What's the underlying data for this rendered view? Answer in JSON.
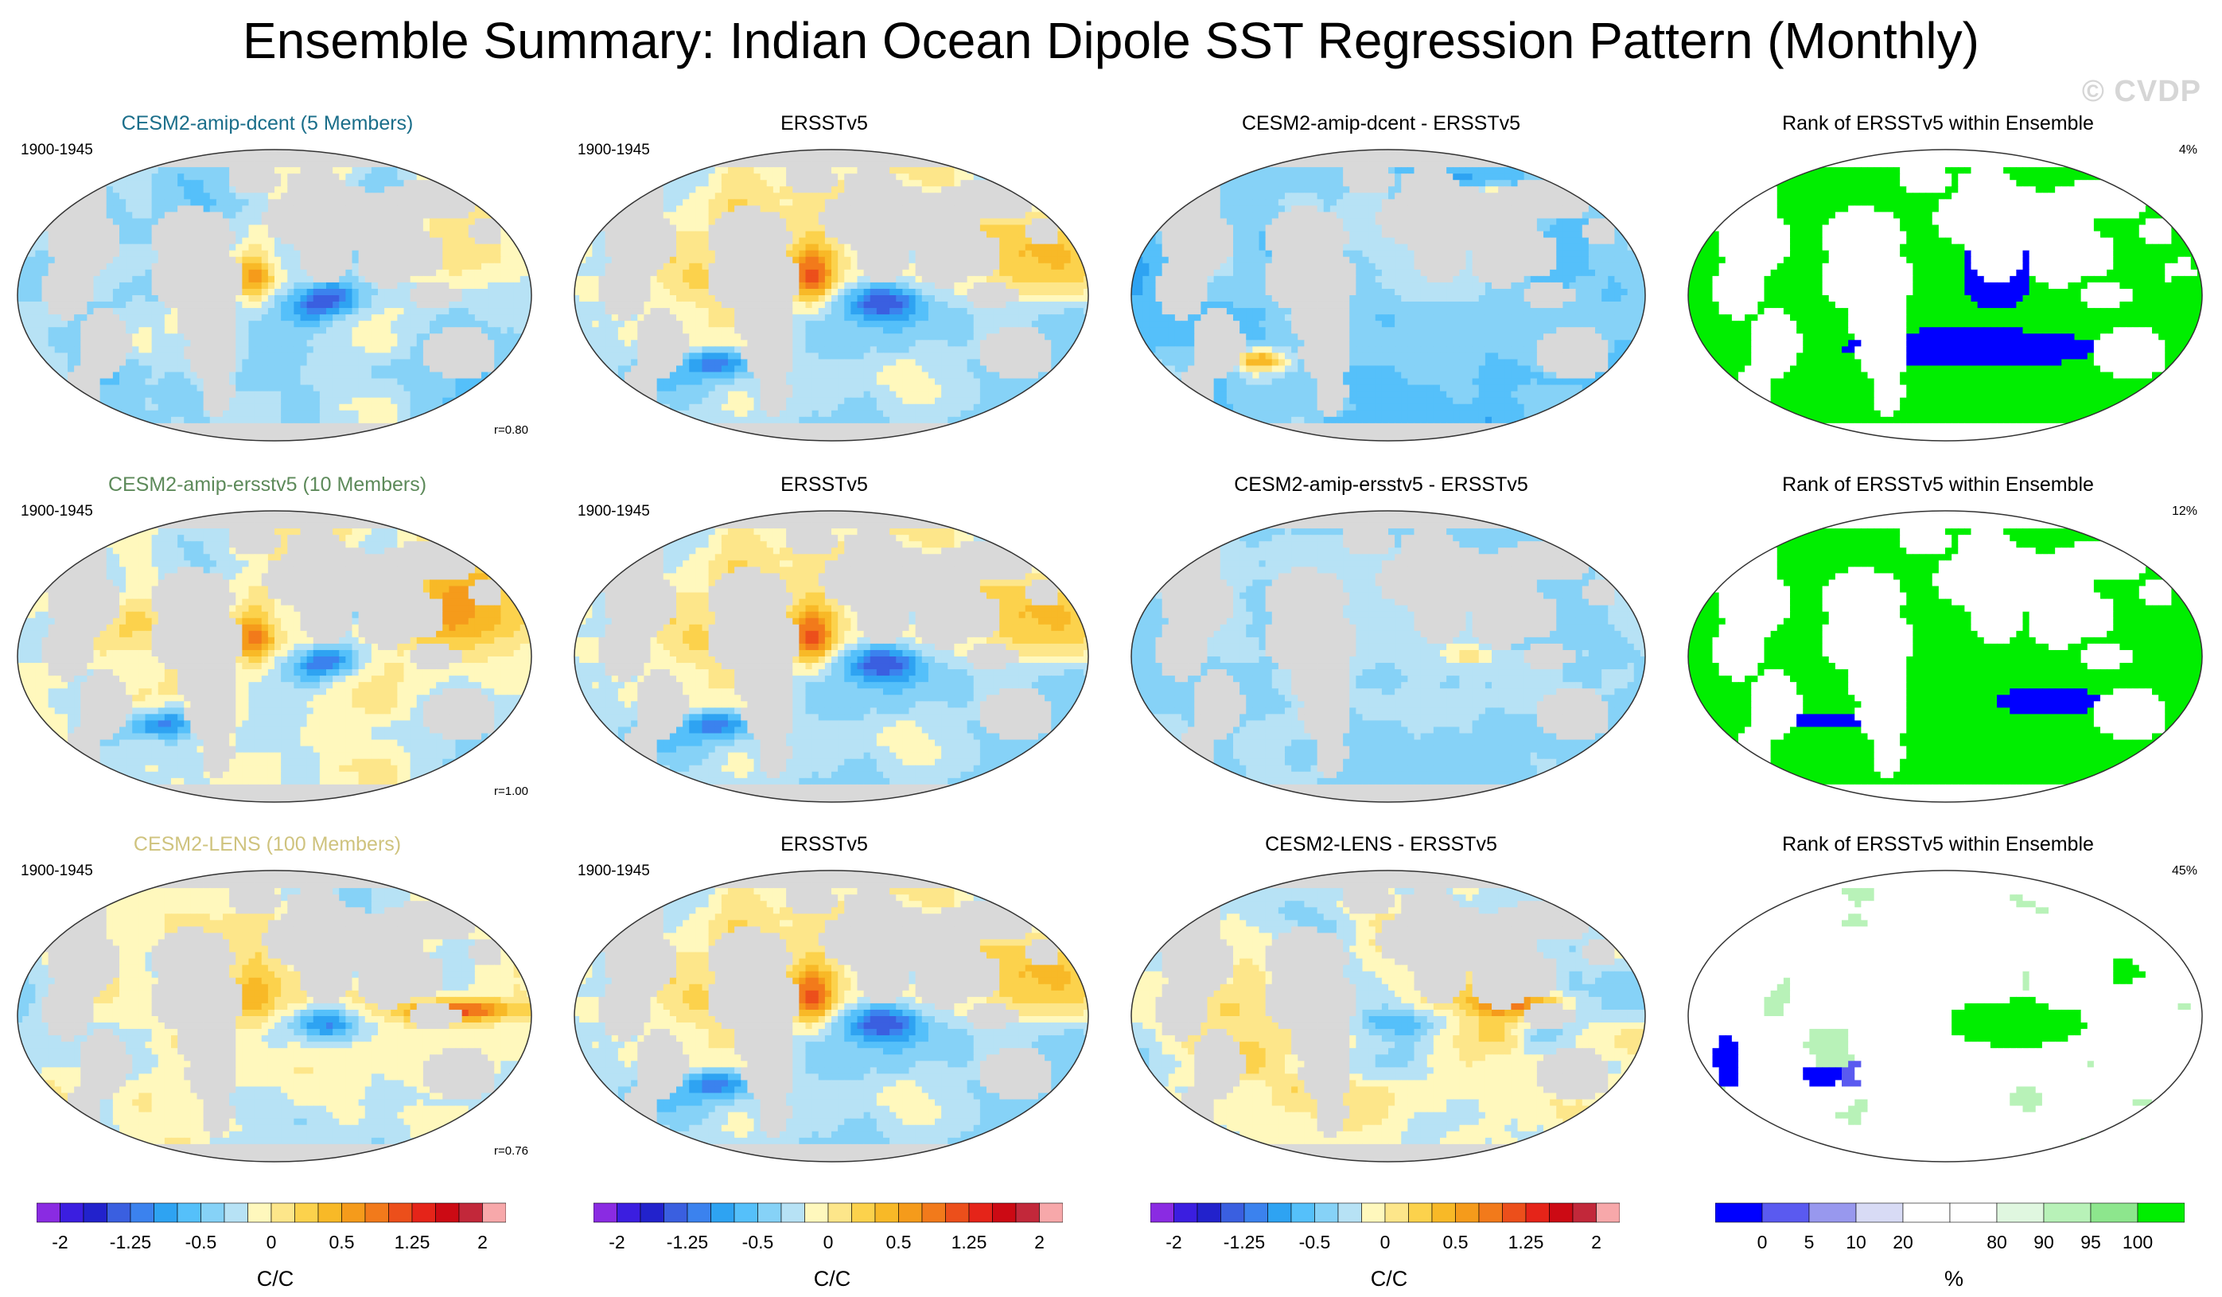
{
  "title": "Ensemble Summary: Indian Ocean Dipole SST Regression Pattern (Monthly)",
  "watermark": "© CVDP",
  "rows": [
    {
      "model": {
        "title": "CESM2-amip-dcent (5 Members)",
        "title_color": "#1a6e8a",
        "period": "1900-1945",
        "correlation": "r=0.80"
      },
      "obs": {
        "title": "ERSSTv5",
        "period": "1900-1945"
      },
      "diff": {
        "title": "CESM2-amip-dcent - ERSSTv5"
      },
      "rank": {
        "title": "Rank of ERSSTv5 within Ensemble",
        "percent": "4%"
      }
    },
    {
      "model": {
        "title": "CESM2-amip-ersstv5 (10 Members)",
        "title_color": "#5d8a5a",
        "period": "1900-1945",
        "correlation": "r=1.00"
      },
      "obs": {
        "title": "ERSSTv5",
        "period": "1900-1945"
      },
      "diff": {
        "title": "CESM2-amip-ersstv5 - ERSSTv5"
      },
      "rank": {
        "title": "Rank of ERSSTv5 within Ensemble",
        "percent": "12%"
      }
    },
    {
      "model": {
        "title": "CESM2-LENS (100 Members)",
        "title_color": "#cfc37e",
        "period": "1900-1945",
        "correlation": "r=0.76"
      },
      "obs": {
        "title": "ERSSTv5",
        "period": "1900-1945"
      },
      "diff": {
        "title": "CESM2-LENS - ERSSTv5"
      },
      "rank": {
        "title": "Rank of ERSSTv5 within Ensemble",
        "percent": "45%"
      }
    }
  ],
  "colorbars": {
    "sst": {
      "label": "C/C",
      "tick_labels": [
        "-2",
        "-1.25",
        "-0.5",
        "0",
        "0.5",
        "1.25",
        "2"
      ],
      "tick_values": [
        -2,
        -1.25,
        -0.5,
        0,
        0.5,
        1.25,
        2
      ],
      "colors": [
        "#8a2be2",
        "#3b1ee0",
        "#2222cc",
        "#3a5fe0",
        "#3b82ee",
        "#2ea3f2",
        "#55c0fa",
        "#86d2f7",
        "#b7e2f5",
        "#fff8bd",
        "#fde68a",
        "#fcd24c",
        "#f8b927",
        "#f59b1b",
        "#f27a1b",
        "#ec4f1b",
        "#e52419",
        "#cc0a14",
        "#c2283a",
        "#f7a8aa"
      ]
    },
    "rank": {
      "label": "%",
      "tick_labels": [
        "0",
        "5",
        "10",
        "20",
        "80",
        "90",
        "95",
        "100"
      ],
      "colors": [
        "#0000ff",
        "#5a5af0",
        "#9898ee",
        "#d8dbf5",
        "#ffffff",
        "#ffffff",
        "#e0f7e0",
        "#b8f2b8",
        "#8de68d",
        "#00ee00"
      ]
    }
  },
  "chart_data": [
    {
      "type": "heatmap",
      "title": "CESM2-amip-dcent (5 Members)",
      "subtitle": "1900-1945",
      "annotation": "r=0.80",
      "units": "C/C",
      "levels": [
        -2,
        -1.25,
        -0.5,
        0,
        0.5,
        1.25,
        2
      ],
      "pattern": "sst_model_dcent"
    },
    {
      "type": "heatmap",
      "title": "ERSSTv5",
      "subtitle": "1900-1945",
      "units": "C/C",
      "pattern": "sst_obs"
    },
    {
      "type": "heatmap",
      "title": "CESM2-amip-dcent - ERSSTv5",
      "units": "C/C",
      "pattern": "sst_diff_dcent"
    },
    {
      "type": "heatmap",
      "title": "Rank of ERSSTv5 within Ensemble",
      "annotation": "4%",
      "units": "%",
      "levels": [
        0,
        5,
        10,
        20,
        80,
        90,
        95,
        100
      ],
      "pattern": "rank_dcent"
    },
    {
      "type": "heatmap",
      "title": "CESM2-amip-ersstv5 (10 Members)",
      "subtitle": "1900-1945",
      "annotation": "r=1.00",
      "units": "C/C",
      "pattern": "sst_model_ersst"
    },
    {
      "type": "heatmap",
      "title": "ERSSTv5",
      "subtitle": "1900-1945",
      "units": "C/C",
      "pattern": "sst_obs"
    },
    {
      "type": "heatmap",
      "title": "CESM2-amip-ersstv5 - ERSSTv5",
      "units": "C/C",
      "pattern": "sst_diff_ersst"
    },
    {
      "type": "heatmap",
      "title": "Rank of ERSSTv5 within Ensemble",
      "annotation": "12%",
      "units": "%",
      "pattern": "rank_ersst"
    },
    {
      "type": "heatmap",
      "title": "CESM2-LENS (100 Members)",
      "subtitle": "1900-1945",
      "annotation": "r=0.76",
      "units": "C/C",
      "pattern": "sst_model_lens"
    },
    {
      "type": "heatmap",
      "title": "ERSSTv5",
      "subtitle": "1900-1945",
      "units": "C/C",
      "pattern": "sst_obs"
    },
    {
      "type": "heatmap",
      "title": "CESM2-LENS - ERSSTv5",
      "units": "C/C",
      "pattern": "sst_diff_lens"
    },
    {
      "type": "heatmap",
      "title": "Rank of ERSSTv5 within Ensemble",
      "annotation": "45%",
      "units": "%",
      "pattern": "rank_lens"
    }
  ]
}
